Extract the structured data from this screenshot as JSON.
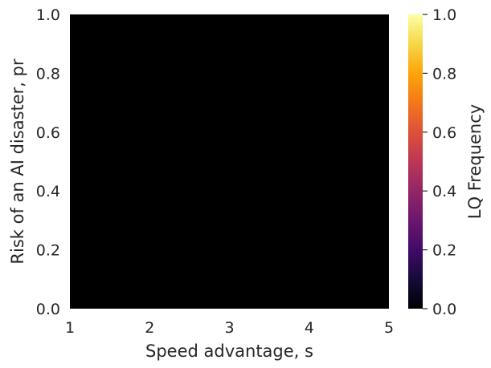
{
  "chart_data": {
    "type": "heatmap",
    "title": "",
    "xlabel": "Speed advantage, s",
    "ylabel": "Risk of an AI disaster, pr",
    "xlim": [
      1,
      5
    ],
    "ylim": [
      0,
      1
    ],
    "xticks": [
      "1",
      "2",
      "3",
      "4",
      "5"
    ],
    "yticks": [
      "0.0",
      "0.2",
      "0.4",
      "0.6",
      "0.8",
      "1.0"
    ],
    "values": [
      [
        0.0
      ]
    ],
    "grid": false,
    "colorbar": {
      "label": "LQ Frequency",
      "colormap": "inferno",
      "range": [
        0,
        1
      ],
      "ticks": [
        "0.0",
        "0.2",
        "0.4",
        "0.6",
        "0.8",
        "1.0"
      ]
    },
    "colors": {
      "plot_fill": "#000000",
      "text": "#262626"
    }
  }
}
